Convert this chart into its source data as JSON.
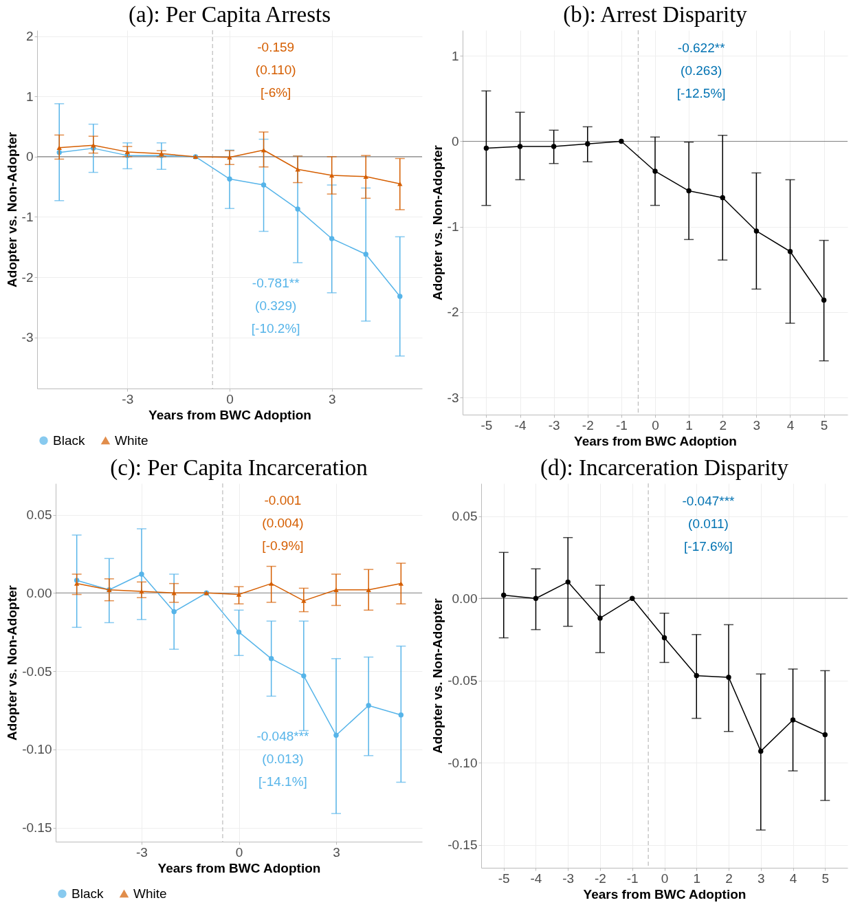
{
  "chart_data": [
    {
      "type": "line",
      "title": "(a): Per Capita Arrests",
      "xlabel": "Years from BWC Adoption",
      "ylabel": "Adopter vs. Non-Adopter",
      "x": [
        -5,
        -4,
        -3,
        -2,
        -1,
        0,
        1,
        2,
        3,
        4,
        5
      ],
      "xlim": [
        -5.65,
        5.65
      ],
      "xticks": [
        -3,
        0,
        3
      ],
      "ylim": [
        -3.85,
        2.1
      ],
      "yticks": [
        -3,
        -2,
        -1,
        0,
        1,
        2
      ],
      "grid": true,
      "legend": "bottom",
      "series": [
        {
          "name": "Black",
          "color": "#56b4e9",
          "marker": "circle",
          "values": [
            0.07,
            0.14,
            0.02,
            0.02,
            0,
            -0.37,
            -0.47,
            -0.87,
            -1.36,
            -1.62,
            -2.32
          ],
          "errors": [
            [
              -0.73,
              0.88
            ],
            [
              -0.26,
              0.54
            ],
            [
              -0.2,
              0.23
            ],
            [
              -0.21,
              0.23
            ],
            null,
            [
              -0.86,
              0.11
            ],
            [
              -1.24,
              0.29
            ],
            [
              -1.76,
              0.01
            ],
            [
              -2.26,
              -0.47
            ],
            [
              -2.73,
              -0.52
            ],
            [
              -3.31,
              -1.33
            ]
          ]
        },
        {
          "name": "White",
          "color": "#d55e00",
          "marker": "triangle",
          "values": [
            0.15,
            0.19,
            0.08,
            0.05,
            0,
            -0.01,
            0.11,
            -0.21,
            -0.31,
            -0.33,
            -0.45
          ],
          "errors": [
            [
              -0.04,
              0.36
            ],
            [
              0.06,
              0.34
            ],
            [
              0,
              0.17
            ],
            [
              0,
              0.1
            ],
            null,
            [
              -0.13,
              0.1
            ],
            [
              -0.17,
              0.41
            ],
            [
              -0.43,
              0.01
            ],
            [
              -0.62,
              0
            ],
            [
              -0.69,
              0.02
            ],
            [
              -0.88,
              -0.03
            ]
          ]
        }
      ],
      "ref_lines": [
        {
          "axis": "x",
          "value": -0.5,
          "color": "#bbbbbb",
          "line_style": "dashed"
        },
        {
          "axis": "y",
          "value": 0,
          "color": "#808080",
          "line_style": "solid"
        }
      ],
      "annotations": [
        "-0.159\n(0.110)\n[-6%]",
        "-0.781**\n(0.329)\n[-10.2%]"
      ]
    },
    {
      "type": "line",
      "title": "(b): Arrest Disparity",
      "xlabel": "Years from BWC Adoption",
      "ylabel": "Adopter vs. Non-Adopter",
      "x": [
        -5,
        -4,
        -3,
        -2,
        -1,
        0,
        1,
        2,
        3,
        4,
        5
      ],
      "xlim": [
        -5.7,
        5.7
      ],
      "xticks": [
        -5,
        -4,
        -3,
        -2,
        -1,
        0,
        1,
        2,
        3,
        4,
        5
      ],
      "ylim": [
        -3.2,
        1.3
      ],
      "yticks": [
        -3,
        -2,
        -1,
        0,
        1
      ],
      "grid": true,
      "marker": "circle",
      "series": [
        {
          "color": "#000000",
          "values": [
            -0.08,
            -0.06,
            -0.06,
            -0.03,
            0,
            -0.35,
            -0.58,
            -0.66,
            -1.05,
            -1.29,
            -1.86
          ],
          "errors": [
            [
              -0.75,
              0.59
            ],
            [
              -0.45,
              0.34
            ],
            [
              -0.26,
              0.13
            ],
            [
              -0.24,
              0.17
            ],
            null,
            [
              -0.75,
              0.05
            ],
            [
              -1.15,
              -0.01
            ],
            [
              -1.39,
              0.07
            ],
            [
              -1.73,
              -0.37
            ],
            [
              -2.13,
              -0.45
            ],
            [
              -2.57,
              -1.16
            ]
          ]
        }
      ],
      "ref_lines": [
        {
          "axis": "x",
          "value": -0.5,
          "color": "#bbbbbb",
          "line_style": "dashed"
        },
        {
          "axis": "y",
          "value": 0,
          "color": "#808080",
          "line_style": "solid"
        }
      ],
      "annotations": [
        "-0.622**\n(0.263)\n[-12.5%]"
      ]
    },
    {
      "type": "line",
      "title": "(c): Per Capita Incarceration",
      "xlabel": "Years from BWC Adoption",
      "ylabel": "Adopter vs. Non-Adopter",
      "x": [
        -5,
        -4,
        -3,
        -2,
        -1,
        0,
        1,
        2,
        3,
        4,
        5
      ],
      "xlim": [
        -5.65,
        5.65
      ],
      "xticks": [
        -3,
        0,
        3
      ],
      "ylim": [
        -0.159,
        0.07
      ],
      "yticks": [
        {
          "value": -0.15,
          "label": "-0.15"
        },
        {
          "value": -0.1,
          "label": "-0.10"
        },
        {
          "value": -0.05,
          "label": "-0.05"
        },
        {
          "value": 0,
          "label": "0.00"
        },
        {
          "value": 0.05,
          "label": "0.05"
        }
      ],
      "grid": true,
      "legend": "bottom",
      "series": [
        {
          "name": "Black",
          "color": "#56b4e9",
          "marker": "circle",
          "values": [
            0.008,
            0.002,
            0.012,
            -0.012,
            0,
            -0.025,
            -0.042,
            -0.053,
            -0.091,
            -0.072,
            -0.078
          ],
          "errors": [
            [
              -0.022,
              0.037
            ],
            [
              -0.019,
              0.022
            ],
            [
              -0.017,
              0.041
            ],
            [
              -0.036,
              0.012
            ],
            null,
            [
              -0.04,
              -0.011
            ],
            [
              -0.066,
              -0.018
            ],
            [
              -0.088,
              -0.018
            ],
            [
              -0.141,
              -0.042
            ],
            [
              -0.104,
              -0.041
            ],
            [
              -0.121,
              -0.034
            ]
          ]
        },
        {
          "name": "White",
          "color": "#d55e00",
          "marker": "triangle",
          "values": [
            0.006,
            0.002,
            0.001,
            0,
            0,
            -0.001,
            0.006,
            -0.005,
            0.002,
            0.002,
            0.006
          ],
          "errors": [
            [
              -0.001,
              0.012
            ],
            [
              -0.005,
              0.009
            ],
            [
              -0.003,
              0.007
            ],
            [
              -0.006,
              0.006
            ],
            null,
            [
              -0.007,
              0.004
            ],
            [
              -0.006,
              0.017
            ],
            [
              -0.012,
              0.003
            ],
            [
              -0.008,
              0.012
            ],
            [
              -0.011,
              0.015
            ],
            [
              -0.007,
              0.019
            ]
          ]
        }
      ],
      "ref_lines": [
        {
          "axis": "x",
          "value": -0.5,
          "color": "#bbbbbb",
          "line_style": "dashed"
        },
        {
          "axis": "y",
          "value": 0,
          "color": "#808080",
          "line_style": "solid"
        }
      ],
      "annotations": [
        "-0.001\n(0.004)\n[-0.9%]",
        "-0.048***\n(0.013)\n[-14.1%]"
      ]
    },
    {
      "type": "line",
      "title": "(d): Incarceration Disparity",
      "xlabel": "Years from BWC Adoption",
      "ylabel": "Adopter vs. Non-Adopter",
      "x": [
        -5,
        -4,
        -3,
        -2,
        -1,
        0,
        1,
        2,
        3,
        4,
        5
      ],
      "xlim": [
        -5.7,
        5.7
      ],
      "xticks": [
        -5,
        -4,
        -3,
        -2,
        -1,
        0,
        1,
        2,
        3,
        4,
        5
      ],
      "ylim": [
        -0.164,
        0.07
      ],
      "yticks": [
        {
          "value": -0.15,
          "label": "-0.15"
        },
        {
          "value": -0.1,
          "label": "-0.10"
        },
        {
          "value": -0.05,
          "label": "-0.05"
        },
        {
          "value": 0,
          "label": "0.00"
        },
        {
          "value": 0.05,
          "label": "0.05"
        }
      ],
      "grid": true,
      "marker": "circle",
      "series": [
        {
          "color": "#000000",
          "values": [
            0.002,
            0,
            0.01,
            -0.012,
            0,
            -0.024,
            -0.047,
            -0.048,
            -0.093,
            -0.074,
            -0.083
          ],
          "errors": [
            [
              -0.024,
              0.028
            ],
            [
              -0.019,
              0.018
            ],
            [
              -0.017,
              0.037
            ],
            [
              -0.033,
              0.008
            ],
            null,
            [
              -0.039,
              -0.009
            ],
            [
              -0.073,
              -0.022
            ],
            [
              -0.081,
              -0.016
            ],
            [
              -0.141,
              -0.046
            ],
            [
              -0.105,
              -0.043
            ],
            [
              -0.123,
              -0.044
            ]
          ]
        }
      ],
      "ref_lines": [
        {
          "axis": "x",
          "value": -0.5,
          "color": "#bbbbbb",
          "line_style": "dashed"
        },
        {
          "axis": "y",
          "value": 0,
          "color": "#808080",
          "line_style": "solid"
        }
      ],
      "annotations": [
        "-0.047***\n(0.011)\n[-17.6%]"
      ]
    }
  ]
}
